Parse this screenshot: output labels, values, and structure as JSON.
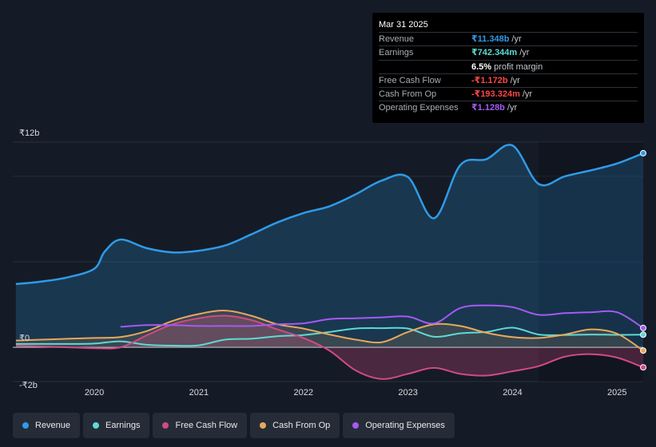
{
  "tooltip": {
    "date": "Mar 31 2025",
    "rows": [
      {
        "label": "Revenue",
        "value": "₹11.348b",
        "unit": "/yr",
        "color": "#2f9be8"
      },
      {
        "label": "Earnings",
        "value": "₹742.344m",
        "unit": "/yr",
        "color": "#5fd9d3"
      },
      {
        "label": "",
        "value": "6.5%",
        "unit": "profit margin",
        "color": "#ffffff"
      },
      {
        "label": "Free Cash Flow",
        "value": "-₹1.172b",
        "unit": "/yr",
        "color": "#ff4747"
      },
      {
        "label": "Cash From Op",
        "value": "-₹193.324m",
        "unit": "/yr",
        "color": "#ff4747"
      },
      {
        "label": "Operating Expenses",
        "value": "₹1.128b",
        "unit": "/yr",
        "color": "#a55af5"
      }
    ]
  },
  "legend": [
    {
      "label": "Revenue",
      "color": "#2f9be8"
    },
    {
      "label": "Earnings",
      "color": "#5fd9d3"
    },
    {
      "label": "Free Cash Flow",
      "color": "#d14a86"
    },
    {
      "label": "Cash From Op",
      "color": "#e8a85a"
    },
    {
      "label": "Operating Expenses",
      "color": "#a55af5"
    }
  ],
  "chart_data": {
    "type": "area",
    "currency_unit": "₹ billions",
    "ylim": [
      -2.0,
      12.0
    ],
    "y_tick_labels": [
      {
        "value": 12,
        "label": "₹12b"
      },
      {
        "value": 0,
        "label": "₹0"
      },
      {
        "value": -2,
        "label": "-₹2b"
      }
    ],
    "x_ticks": [
      2020,
      2021,
      2022,
      2023,
      2024,
      2025
    ],
    "xlim": [
      2019.22,
      2025.25
    ],
    "forecast_shade_start": 2024.25,
    "series": [
      {
        "name": "Revenue",
        "color": "#2f9be8",
        "fill": true,
        "points": [
          [
            2019.25,
            3.7
          ],
          [
            2019.5,
            3.85
          ],
          [
            2019.75,
            4.1
          ],
          [
            2020.0,
            4.6
          ],
          [
            2020.1,
            5.6
          ],
          [
            2020.25,
            6.3
          ],
          [
            2020.5,
            5.8
          ],
          [
            2020.75,
            5.55
          ],
          [
            2021.0,
            5.65
          ],
          [
            2021.25,
            5.95
          ],
          [
            2021.5,
            6.6
          ],
          [
            2021.75,
            7.3
          ],
          [
            2022.0,
            7.85
          ],
          [
            2022.25,
            8.25
          ],
          [
            2022.5,
            8.95
          ],
          [
            2022.75,
            9.75
          ],
          [
            2023.0,
            9.95
          ],
          [
            2023.25,
            7.55
          ],
          [
            2023.5,
            10.65
          ],
          [
            2023.75,
            11.0
          ],
          [
            2024.0,
            11.8
          ],
          [
            2024.25,
            9.55
          ],
          [
            2024.5,
            10.0
          ],
          [
            2024.75,
            10.35
          ],
          [
            2025.0,
            10.75
          ],
          [
            2025.25,
            11.35
          ]
        ]
      },
      {
        "name": "Earnings",
        "color": "#5fd9d3",
        "fill": false,
        "points": [
          [
            2019.25,
            0.2
          ],
          [
            2019.5,
            0.2
          ],
          [
            2019.75,
            0.2
          ],
          [
            2020.0,
            0.22
          ],
          [
            2020.25,
            0.35
          ],
          [
            2020.5,
            0.15
          ],
          [
            2020.75,
            0.1
          ],
          [
            2021.0,
            0.12
          ],
          [
            2021.25,
            0.45
          ],
          [
            2021.5,
            0.5
          ],
          [
            2021.75,
            0.65
          ],
          [
            2022.0,
            0.72
          ],
          [
            2022.25,
            0.9
          ],
          [
            2022.5,
            1.1
          ],
          [
            2022.75,
            1.12
          ],
          [
            2023.0,
            1.1
          ],
          [
            2023.25,
            0.62
          ],
          [
            2023.5,
            0.82
          ],
          [
            2023.75,
            0.9
          ],
          [
            2024.0,
            1.15
          ],
          [
            2024.25,
            0.75
          ],
          [
            2024.5,
            0.72
          ],
          [
            2024.75,
            0.75
          ],
          [
            2025.0,
            0.73
          ],
          [
            2025.25,
            0.74
          ]
        ]
      },
      {
        "name": "Free Cash Flow",
        "color": "#d14a86",
        "fill": true,
        "points": [
          [
            2019.25,
            0.1
          ],
          [
            2019.5,
            0.05
          ],
          [
            2019.75,
            0.0
          ],
          [
            2020.0,
            -0.05
          ],
          [
            2020.25,
            0.0
          ],
          [
            2020.5,
            0.7
          ],
          [
            2020.75,
            1.35
          ],
          [
            2021.0,
            1.7
          ],
          [
            2021.25,
            1.85
          ],
          [
            2021.5,
            1.6
          ],
          [
            2021.75,
            1.05
          ],
          [
            2022.0,
            0.55
          ],
          [
            2022.25,
            -0.2
          ],
          [
            2022.5,
            -1.35
          ],
          [
            2022.75,
            -1.85
          ],
          [
            2023.0,
            -1.55
          ],
          [
            2023.25,
            -1.2
          ],
          [
            2023.5,
            -1.55
          ],
          [
            2023.75,
            -1.65
          ],
          [
            2024.0,
            -1.4
          ],
          [
            2024.25,
            -1.1
          ],
          [
            2024.5,
            -0.55
          ],
          [
            2024.75,
            -0.4
          ],
          [
            2025.0,
            -0.6
          ],
          [
            2025.25,
            -1.17
          ]
        ]
      },
      {
        "name": "Cash From Op",
        "color": "#e8a85a",
        "fill": true,
        "points": [
          [
            2019.25,
            0.4
          ],
          [
            2019.5,
            0.45
          ],
          [
            2019.75,
            0.5
          ],
          [
            2020.0,
            0.55
          ],
          [
            2020.25,
            0.6
          ],
          [
            2020.5,
            0.95
          ],
          [
            2020.75,
            1.55
          ],
          [
            2021.0,
            1.95
          ],
          [
            2021.25,
            2.15
          ],
          [
            2021.5,
            1.85
          ],
          [
            2021.75,
            1.35
          ],
          [
            2022.0,
            1.1
          ],
          [
            2022.25,
            0.75
          ],
          [
            2022.5,
            0.45
          ],
          [
            2022.75,
            0.3
          ],
          [
            2023.0,
            0.9
          ],
          [
            2023.25,
            1.35
          ],
          [
            2023.5,
            1.25
          ],
          [
            2023.75,
            0.85
          ],
          [
            2024.0,
            0.6
          ],
          [
            2024.25,
            0.55
          ],
          [
            2024.5,
            0.75
          ],
          [
            2024.75,
            1.05
          ],
          [
            2025.0,
            0.8
          ],
          [
            2025.25,
            -0.19
          ]
        ]
      },
      {
        "name": "Operating Expenses",
        "color": "#a55af5",
        "fill": false,
        "points": [
          [
            2020.25,
            1.2
          ],
          [
            2020.5,
            1.3
          ],
          [
            2020.75,
            1.3
          ],
          [
            2021.0,
            1.25
          ],
          [
            2021.25,
            1.25
          ],
          [
            2021.5,
            1.25
          ],
          [
            2021.75,
            1.35
          ],
          [
            2022.0,
            1.4
          ],
          [
            2022.25,
            1.65
          ],
          [
            2022.5,
            1.7
          ],
          [
            2022.75,
            1.75
          ],
          [
            2023.0,
            1.8
          ],
          [
            2023.25,
            1.4
          ],
          [
            2023.5,
            2.3
          ],
          [
            2023.75,
            2.45
          ],
          [
            2024.0,
            2.35
          ],
          [
            2024.25,
            1.9
          ],
          [
            2024.5,
            2.0
          ],
          [
            2024.75,
            2.05
          ],
          [
            2025.0,
            2.05
          ],
          [
            2025.25,
            1.13
          ]
        ]
      }
    ]
  }
}
